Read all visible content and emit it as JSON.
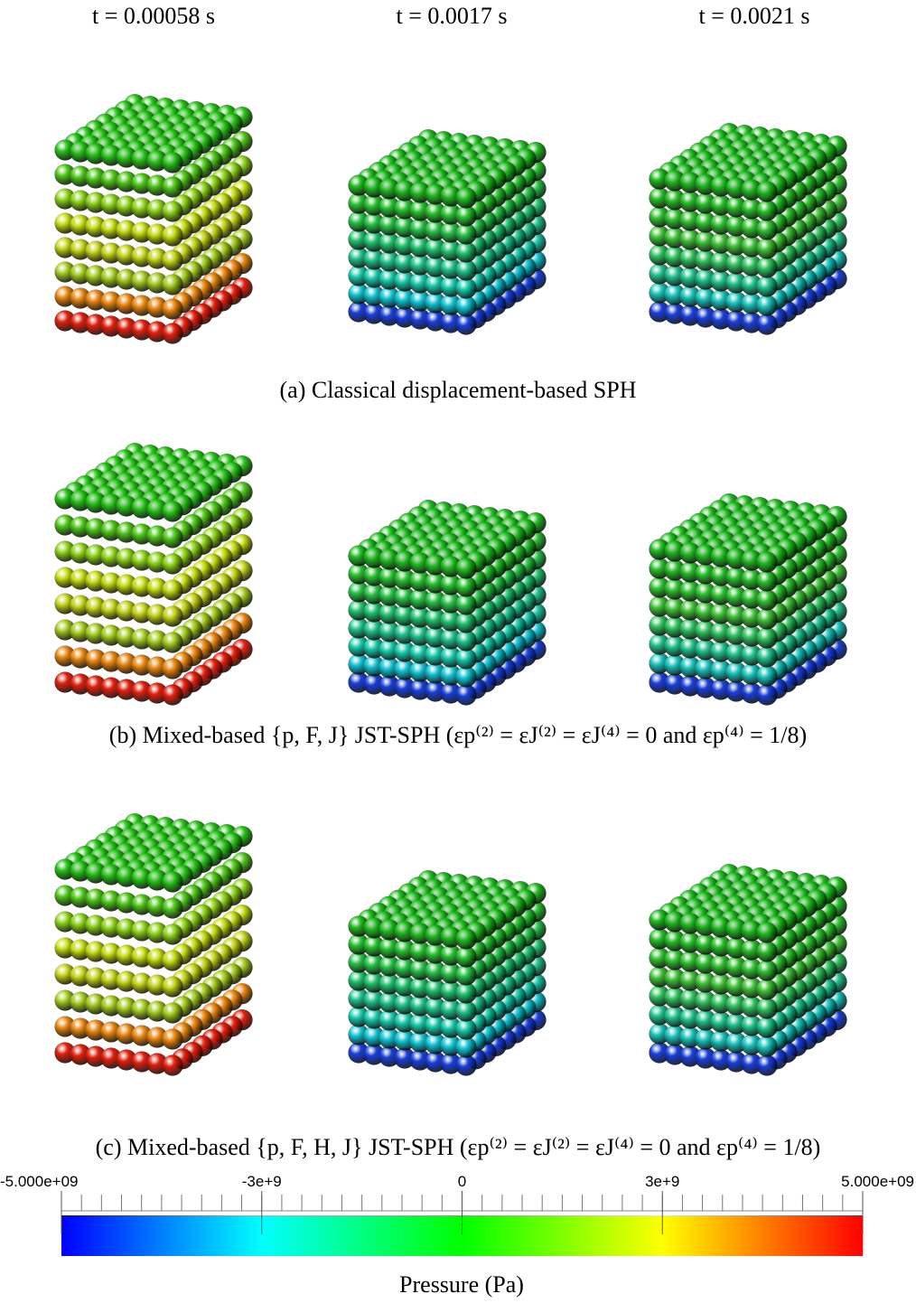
{
  "column_headers": [
    "t = 0.00058 s",
    "t = 0.0017 s",
    "t = 0.0021 s"
  ],
  "captions": [
    "(a) Classical displacement-based SPH",
    "(b) Mixed-based {p, F, J} JST-SPH (εp⁽²⁾ = εJ⁽²⁾ = εJ⁽⁴⁾ = 0 and εp⁽⁴⁾ = 1/8)",
    "(c) Mixed-based {p, F, H, J} JST-SPH (εp⁽²⁾ = εJ⁽²⁾ = εJ⁽⁴⁾ = 0 and εp⁽⁴⁾ = 1/8)"
  ],
  "colorbar": {
    "title": "Pressure (Pa)",
    "lim": [
      -5000000000.0,
      5000000000.0
    ],
    "ticks": [
      {
        "value": -5000000000.0,
        "label": "-5.000e+09"
      },
      {
        "value": -2500000000.0,
        "label": "-3e+9"
      },
      0,
      {
        "value": 2500000000.0,
        "label": "3e+9"
      },
      {
        "value": 5000000000.0,
        "label": "5.000e+09"
      }
    ],
    "minor_ticks": [
      -5000000000.0,
      -4750000000.0,
      -4500000000.0,
      -4250000000.0,
      -4000000000.0,
      -3750000000.0,
      -3500000000.0,
      -3250000000.0,
      -3000000000.0,
      -2750000000.0,
      -2500000000.0,
      -2250000000.0,
      -2000000000.0,
      -1750000000.0,
      -1500000000.0,
      -1250000000.0,
      -1000000000.0,
      -750000000.0,
      -500000000.0,
      -250000000.0,
      0,
      250000000.0,
      500000000.0,
      750000000.0,
      1000000000.0,
      1250000000.0,
      1500000000.0,
      1750000000.0,
      2000000000.0,
      2250000000.0,
      2500000000.0,
      2750000000.0,
      3000000000.0,
      3250000000.0,
      3500000000.0,
      3750000000.0,
      4000000000.0,
      4250000000.0,
      4500000000.0,
      4750000000.0,
      5000000000.0
    ]
  }
}
